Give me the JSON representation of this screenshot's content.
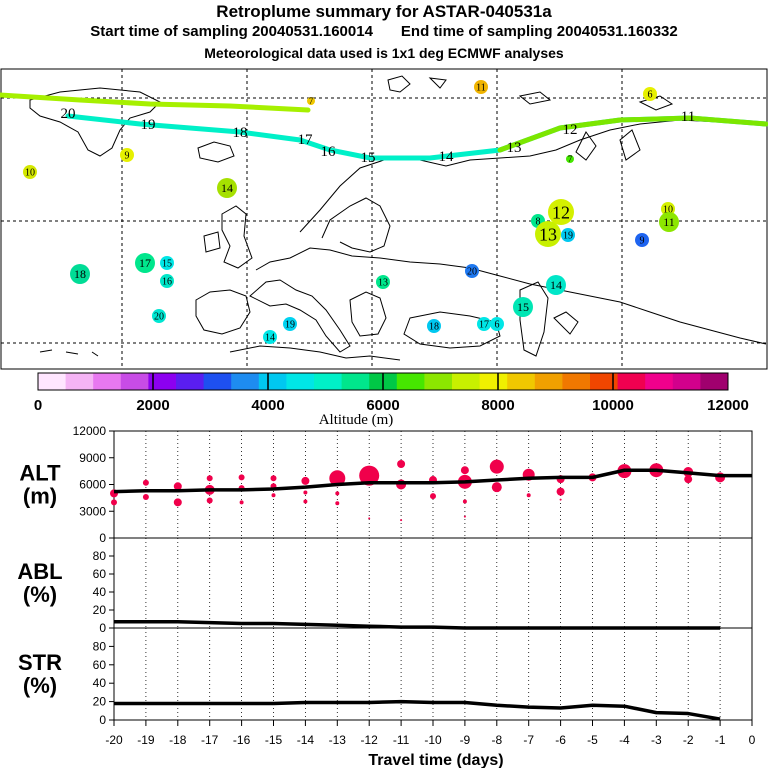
{
  "header": {
    "title": "Retroplume summary for ASTAR-040531a",
    "start_label": "Start time of sampling 20040531.160014",
    "end_label": "End time of sampling 20040531.160332",
    "met_label": "Meteorological data used is 1x1 deg ECMWF analyses"
  },
  "colorbar": {
    "label": "Altitude (m)",
    "ticks": [
      "0",
      "2000",
      "4000",
      "6000",
      "8000",
      "10000",
      "12000"
    ],
    "colors": [
      "#ffe6ff",
      "#f5b4f5",
      "#e878f0",
      "#c84ce6",
      "#8c00f0",
      "#5a1ef0",
      "#1e50f0",
      "#1e8cf0",
      "#00c8f0",
      "#00e6e6",
      "#00f0c8",
      "#00e68c",
      "#00c846",
      "#46e600",
      "#8ce600",
      "#c8f000",
      "#f0f000",
      "#f0c800",
      "#f0a000",
      "#f07800",
      "#f04600",
      "#f00050",
      "#f0008c",
      "#d2008c",
      "#a0006e"
    ]
  },
  "map": {
    "trajectory_labels": [
      "20",
      "19",
      "18",
      "17",
      "16",
      "15",
      "14",
      "13",
      "12",
      "11"
    ],
    "blobs": [
      {
        "label": "10",
        "color": "#d4e800",
        "size": "small"
      },
      {
        "label": "9",
        "color": "#e6f000",
        "size": "small"
      },
      {
        "label": "14",
        "color": "#a6e000",
        "size": "medium"
      },
      {
        "label": "18",
        "color": "#00dc96",
        "size": "medium"
      },
      {
        "label": "17",
        "color": "#00e68c",
        "size": "medium"
      },
      {
        "label": "15",
        "color": "#00e6e6",
        "size": "small"
      },
      {
        "label": "16",
        "color": "#00e6c8",
        "size": "small"
      },
      {
        "label": "20",
        "color": "#00e6d2",
        "size": "small"
      },
      {
        "label": "19",
        "color": "#00d2f0",
        "size": "small"
      },
      {
        "label": "14",
        "color": "#00e6e6",
        "size": "small"
      },
      {
        "label": "13",
        "color": "#00e68c",
        "size": "small"
      },
      {
        "label": "20",
        "color": "#1e78f0",
        "size": "small"
      },
      {
        "label": "18",
        "color": "#00c8f0",
        "size": "small"
      },
      {
        "label": "17",
        "color": "#00e6e6",
        "size": "small"
      },
      {
        "label": "6",
        "color": "#00e6e6",
        "size": "small"
      },
      {
        "label": "15",
        "color": "#00e6b4",
        "size": "medium"
      },
      {
        "label": "14",
        "color": "#00e6c8",
        "size": "medium"
      },
      {
        "label": "8",
        "color": "#00e68c",
        "size": "small"
      },
      {
        "label": "12",
        "color": "#d4f000",
        "size": "large"
      },
      {
        "label": "13",
        "color": "#c8f000",
        "size": "large"
      },
      {
        "label": "19",
        "color": "#00c8f0",
        "size": "small"
      },
      {
        "label": "9",
        "color": "#1e64f0",
        "size": "small"
      },
      {
        "label": "10",
        "color": "#d4f000",
        "size": "small"
      },
      {
        "label": "11",
        "color": "#8ce600",
        "size": "medium"
      },
      {
        "label": "11",
        "color": "#f0b400",
        "size": "small"
      },
      {
        "label": "6",
        "color": "#e6f000",
        "size": "small"
      },
      {
        "label": "7",
        "color": "#f0c800",
        "size": "tiny"
      },
      {
        "label": "7",
        "color": "#46e600",
        "size": "tiny"
      }
    ]
  },
  "chart_data": [
    {
      "type": "line",
      "panel": "ALT",
      "ylabel": [
        "ALT",
        "(m)"
      ],
      "ylim": [
        0,
        12000
      ],
      "yticks": [
        "0",
        "3000",
        "6000",
        "9000",
        "12000"
      ],
      "x": [
        -20,
        -19,
        -18,
        -17,
        -16,
        -15,
        -14,
        -13,
        -12,
        -11,
        -10,
        -9,
        -8,
        -7,
        -6,
        -5,
        -4,
        -3,
        -2,
        -1,
        0
      ],
      "mean_line": [
        5200,
        5300,
        5300,
        5400,
        5400,
        5500,
        5700,
        6000,
        6200,
        6200,
        6200,
        6300,
        6500,
        6700,
        6800,
        6800,
        7600,
        7600,
        7300,
        7000,
        7000
      ],
      "particles": [
        {
          "x": -20,
          "y": 5000,
          "r": 4
        },
        {
          "x": -20,
          "y": 4000,
          "r": 3
        },
        {
          "x": -19,
          "y": 6200,
          "r": 3
        },
        {
          "x": -19,
          "y": 4600,
          "r": 3
        },
        {
          "x": -18,
          "y": 5800,
          "r": 4
        },
        {
          "x": -18,
          "y": 4000,
          "r": 4
        },
        {
          "x": -17,
          "y": 6700,
          "r": 3
        },
        {
          "x": -17,
          "y": 5400,
          "r": 5
        },
        {
          "x": -17,
          "y": 4200,
          "r": 3
        },
        {
          "x": -16,
          "y": 6800,
          "r": 3
        },
        {
          "x": -16,
          "y": 5600,
          "r": 3
        },
        {
          "x": -16,
          "y": 4000,
          "r": 2
        },
        {
          "x": -15,
          "y": 6700,
          "r": 3
        },
        {
          "x": -15,
          "y": 5800,
          "r": 3
        },
        {
          "x": -15,
          "y": 4800,
          "r": 2
        },
        {
          "x": -14,
          "y": 6400,
          "r": 4
        },
        {
          "x": -14,
          "y": 5100,
          "r": 2
        },
        {
          "x": -14,
          "y": 4100,
          "r": 2
        },
        {
          "x": -13,
          "y": 6700,
          "r": 8
        },
        {
          "x": -13,
          "y": 5000,
          "r": 2
        },
        {
          "x": -13,
          "y": 3900,
          "r": 2
        },
        {
          "x": -12,
          "y": 7000,
          "r": 10
        },
        {
          "x": -12,
          "y": 2200,
          "r": 1
        },
        {
          "x": -11,
          "y": 8300,
          "r": 4
        },
        {
          "x": -11,
          "y": 6000,
          "r": 5
        },
        {
          "x": -11,
          "y": 2000,
          "r": 1
        },
        {
          "x": -10,
          "y": 6500,
          "r": 4
        },
        {
          "x": -10,
          "y": 4700,
          "r": 3
        },
        {
          "x": -9,
          "y": 7600,
          "r": 4
        },
        {
          "x": -9,
          "y": 6300,
          "r": 7
        },
        {
          "x": -9,
          "y": 4100,
          "r": 2
        },
        {
          "x": -9,
          "y": 2400,
          "r": 1
        },
        {
          "x": -8,
          "y": 8000,
          "r": 7
        },
        {
          "x": -8,
          "y": 5700,
          "r": 5
        },
        {
          "x": -7,
          "y": 7100,
          "r": 6
        },
        {
          "x": -7,
          "y": 4800,
          "r": 2
        },
        {
          "x": -6,
          "y": 6600,
          "r": 4
        },
        {
          "x": -6,
          "y": 5200,
          "r": 4
        },
        {
          "x": -6,
          "y": 4300,
          "r": 1
        },
        {
          "x": -5,
          "y": 6800,
          "r": 4
        },
        {
          "x": -4,
          "y": 7500,
          "r": 7
        },
        {
          "x": -3,
          "y": 7600,
          "r": 7
        },
        {
          "x": -2,
          "y": 7400,
          "r": 5
        },
        {
          "x": -2,
          "y": 6600,
          "r": 4
        },
        {
          "x": -1,
          "y": 6800,
          "r": 5
        }
      ]
    },
    {
      "type": "line",
      "panel": "ABL",
      "ylabel": [
        "ABL",
        "(%)"
      ],
      "ylim": [
        0,
        100
      ],
      "yticks": [
        "0",
        "20",
        "40",
        "60",
        "80"
      ],
      "x": [
        -20,
        -19,
        -18,
        -17,
        -16,
        -15,
        -14,
        -13,
        -12,
        -11,
        -10,
        -9,
        -8,
        -7,
        -6,
        -5,
        -4,
        -3,
        -2,
        -1
      ],
      "values": [
        7,
        7,
        7,
        6,
        5,
        5,
        4,
        3,
        2,
        1,
        1,
        0,
        0,
        0,
        0,
        0,
        0,
        0,
        0,
        0
      ]
    },
    {
      "type": "line",
      "panel": "STR",
      "ylabel": [
        "STR",
        "(%)"
      ],
      "ylim": [
        0,
        100
      ],
      "yticks": [
        "0",
        "20",
        "40",
        "60",
        "80"
      ],
      "x": [
        -20,
        -19,
        -18,
        -17,
        -16,
        -15,
        -14,
        -13,
        -12,
        -11,
        -10,
        -9,
        -8,
        -7,
        -6,
        -5,
        -4,
        -3,
        -2,
        -1
      ],
      "values": [
        18,
        18,
        18,
        18,
        18,
        18,
        19,
        19,
        19,
        20,
        19,
        19,
        16,
        14,
        13,
        16,
        15,
        8,
        7,
        1
      ]
    }
  ],
  "xaxis": {
    "label": "Travel time (days)",
    "ticks": [
      "-20",
      "-19",
      "-18",
      "-17",
      "-16",
      "-15",
      "-14",
      "-13",
      "-12",
      "-11",
      "-10",
      "-9",
      "-8",
      "-7",
      "-6",
      "-5",
      "-4",
      "-3",
      "-2",
      "-1",
      "0"
    ]
  }
}
